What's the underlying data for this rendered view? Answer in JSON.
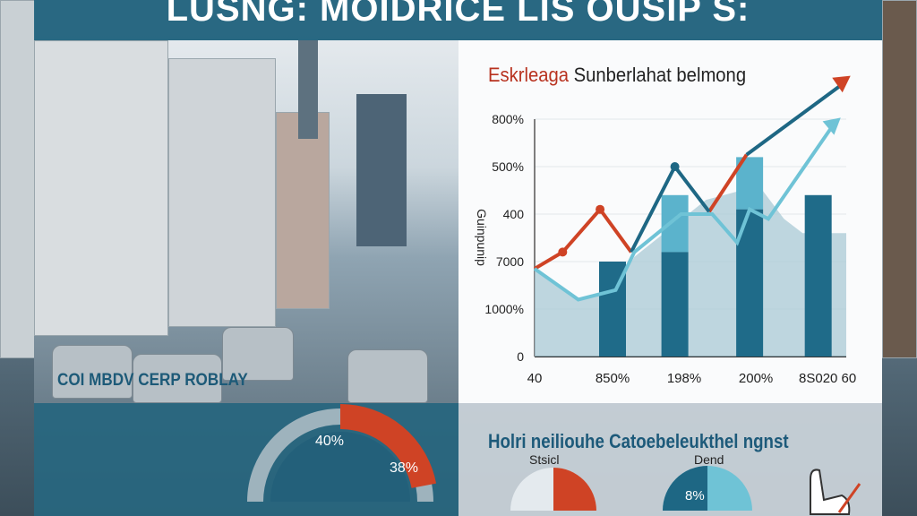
{
  "header": {
    "title": "LUSNG: MOIDRICE LIS OUSIP S:"
  },
  "photo": {
    "caption": "COI MBDV CERP ROBLAY"
  },
  "chart_data": {
    "type": "bar",
    "title_part1": "Eskrleaga",
    "title_part2": "Sunberlahat belmong",
    "ylabel": "Guinpunip",
    "yticks": [
      {
        "v": 0,
        "label": "0"
      },
      {
        "v": 1,
        "label": "1000%"
      },
      {
        "v": 2,
        "label": "7000"
      },
      {
        "v": 3,
        "label": "400"
      },
      {
        "v": 4,
        "label": "500%"
      },
      {
        "v": 5,
        "label": "800%"
      }
    ],
    "xticks": [
      {
        "v": 0,
        "label": "40"
      },
      {
        "v": 25,
        "label": "850%"
      },
      {
        "v": 48,
        "label": "198%"
      },
      {
        "v": 71,
        "label": "200%"
      },
      {
        "v": 94,
        "label": "8S020 60"
      }
    ],
    "ylim": [
      0,
      5.8
    ],
    "xlim": [
      0,
      100
    ],
    "bars": [
      {
        "x": 25,
        "dark": 2.0,
        "light": 2.0
      },
      {
        "x": 45,
        "dark": 2.2,
        "light": 3.4
      },
      {
        "x": 69,
        "dark": 3.1,
        "light": 4.2
      },
      {
        "x": 91,
        "dark": 3.4,
        "light": 3.4
      }
    ],
    "area": [
      [
        0,
        1.85
      ],
      [
        14,
        1.2
      ],
      [
        26,
        1.45
      ],
      [
        32,
        2.1
      ],
      [
        55,
        3.3
      ],
      [
        72,
        3.6
      ],
      [
        80,
        2.9
      ],
      [
        86,
        2.6
      ],
      [
        92,
        2.6
      ],
      [
        100,
        2.6
      ]
    ],
    "series": [
      {
        "name": "red",
        "color": "#cf4325",
        "points": [
          [
            0,
            1.85
          ],
          [
            9,
            2.2
          ],
          [
            21,
            3.1
          ],
          [
            31,
            2.2
          ]
        ]
      },
      {
        "name": "red-2",
        "color": "#cf4325",
        "points": [
          [
            56,
            3.05
          ],
          [
            68,
            4.25
          ]
        ]
      },
      {
        "name": "blue",
        "color": "#1e6784",
        "points": [
          [
            31,
            2.2
          ],
          [
            45,
            4.0
          ],
          [
            56,
            3.05
          ]
        ]
      },
      {
        "name": "blue-arrow",
        "color": "#1e6784",
        "points": [
          [
            68,
            4.25
          ],
          [
            98,
            5.7
          ]
        ]
      },
      {
        "name": "light",
        "color": "#6fc3d6",
        "points": [
          [
            0,
            1.85
          ],
          [
            14,
            1.2
          ],
          [
            26,
            1.4
          ],
          [
            32,
            2.2
          ],
          [
            47,
            3.0
          ],
          [
            57,
            3.0
          ],
          [
            65,
            2.4
          ],
          [
            69,
            3.1
          ],
          [
            75,
            2.9
          ],
          [
            95,
            4.8
          ]
        ]
      }
    ]
  },
  "donut": {
    "label_a": "40%",
    "label_b": "38%",
    "value_a": 40
  },
  "bottom": {
    "title": "Holri neiliouhe Catoebeleukthel ngnst",
    "pie1_label": "Stsicl",
    "pie2_label": "Dend",
    "pie2_value": "8%"
  },
  "colors": {
    "teal": "#1e6784",
    "red": "#cf4325",
    "light": "#6fc3d6"
  }
}
